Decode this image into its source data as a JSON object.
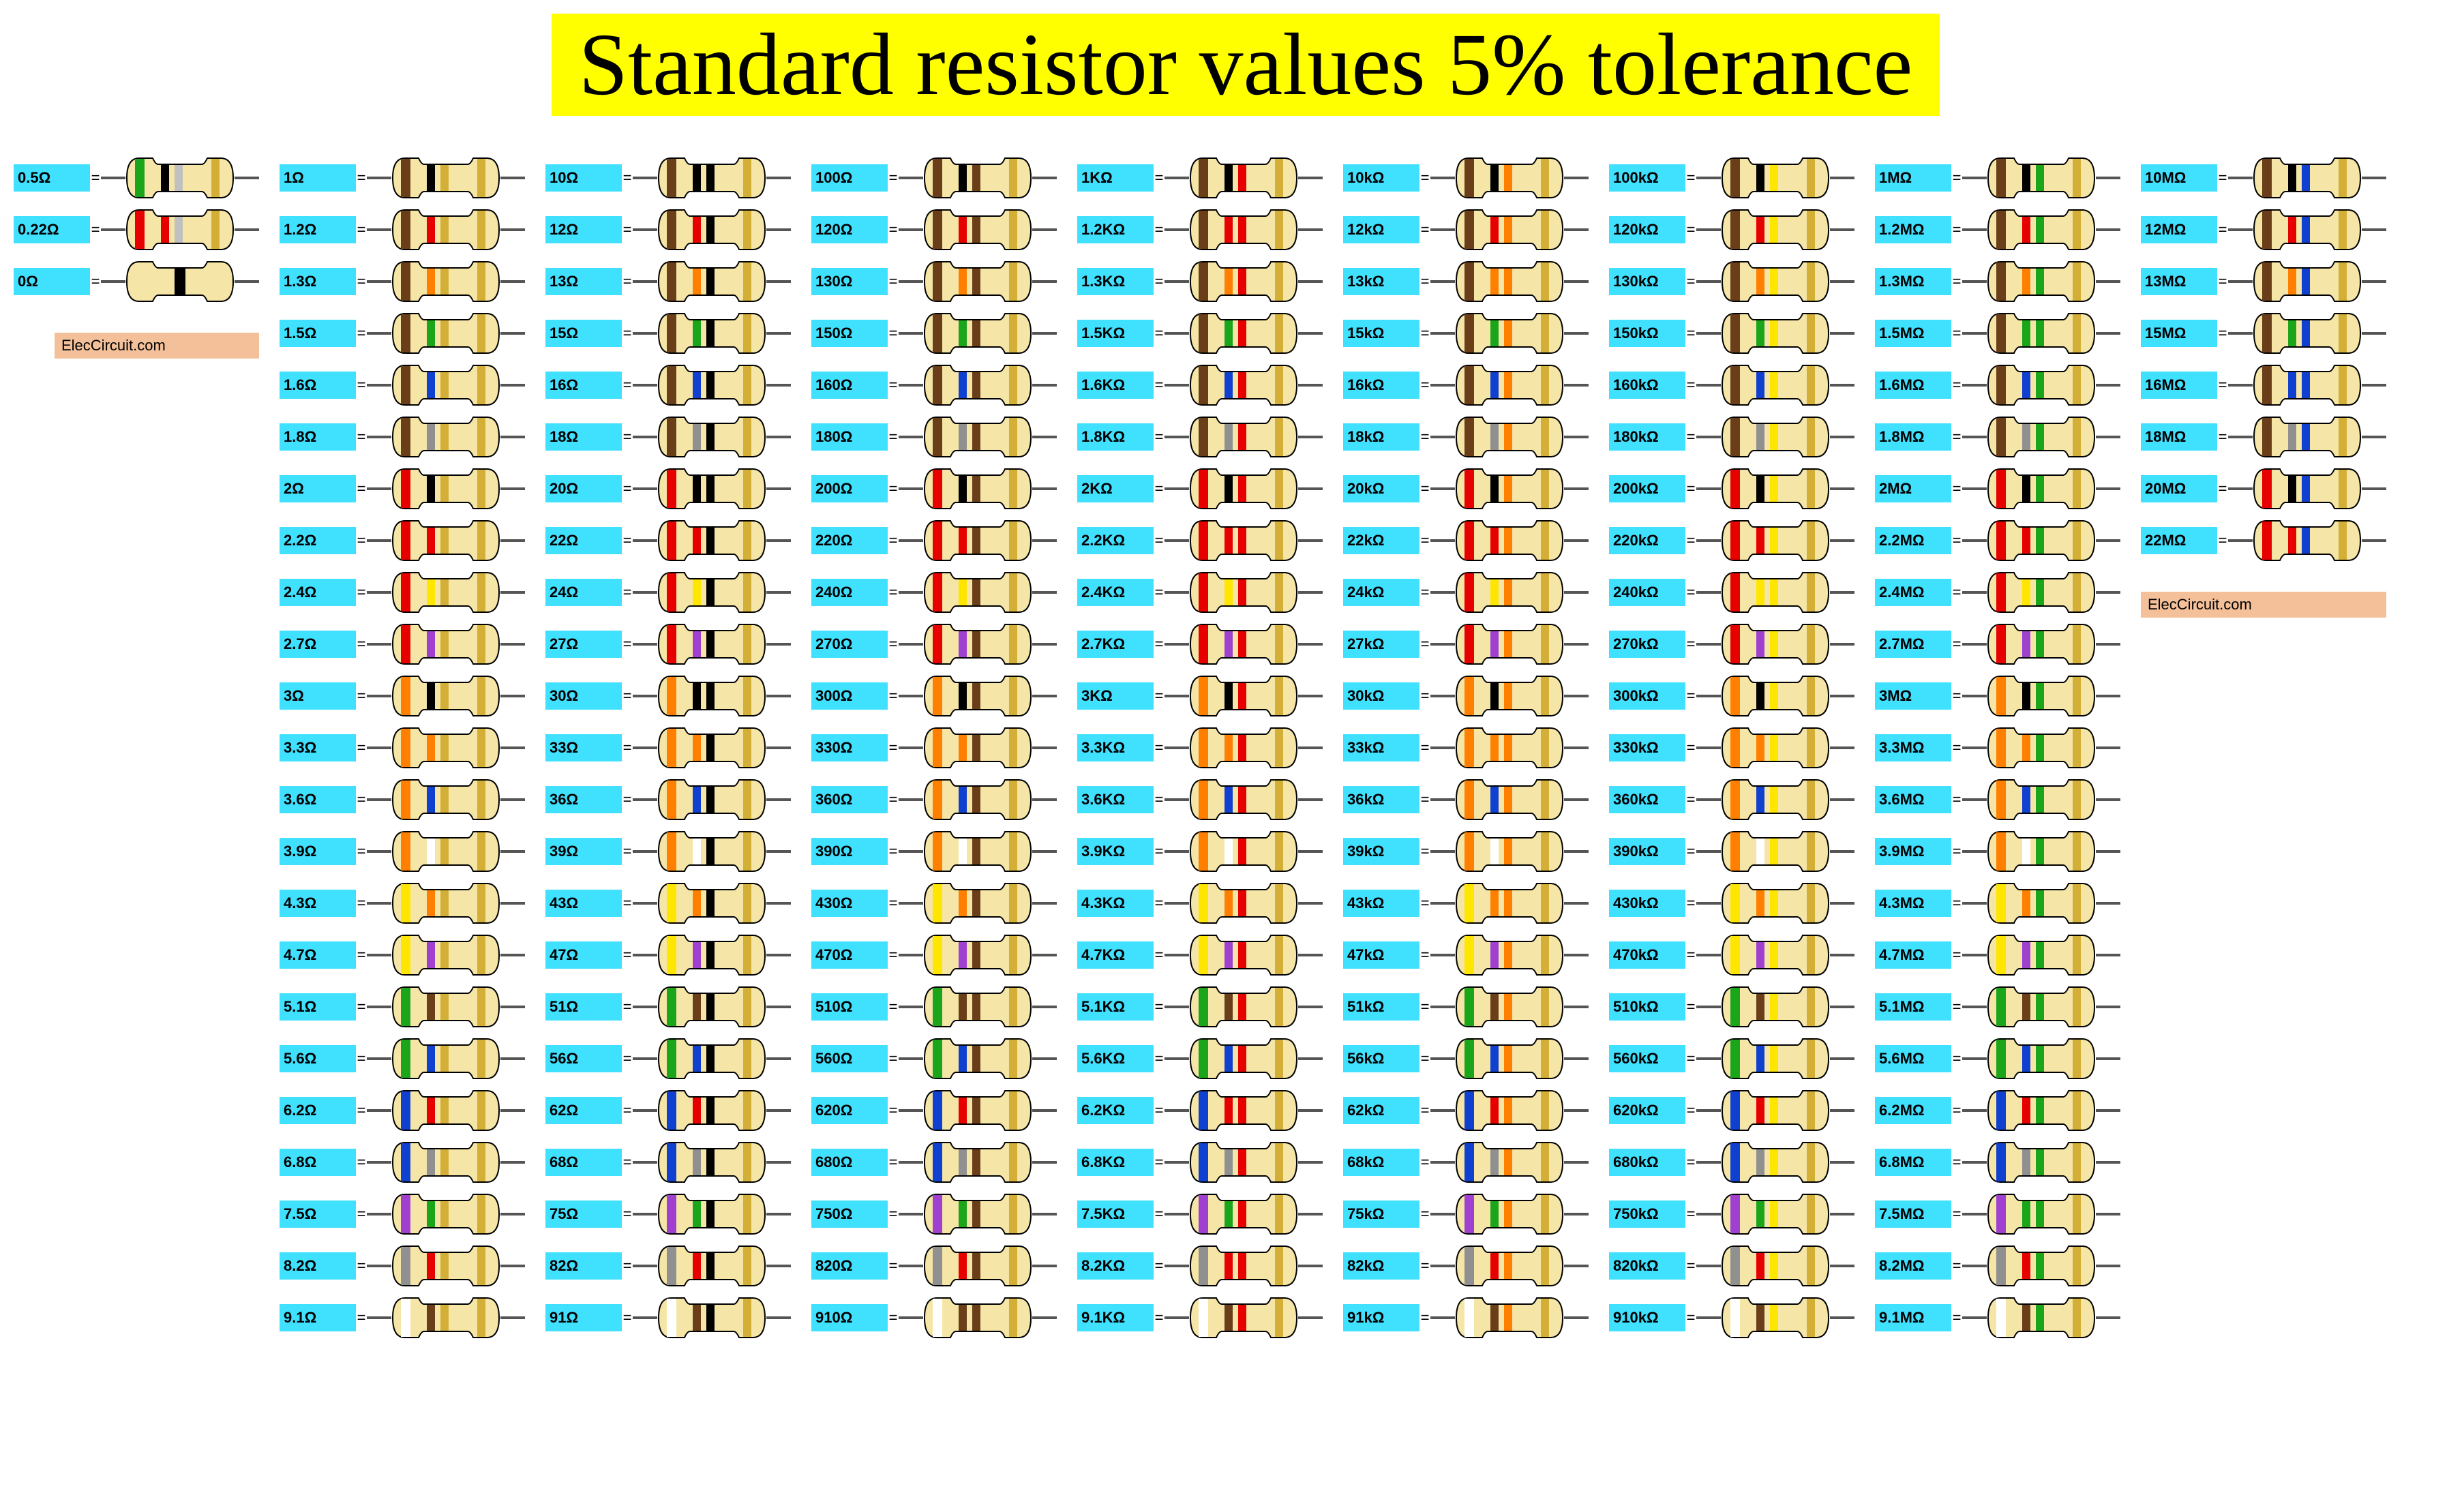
{
  "title": "Standard resistor values 5% tolerance",
  "title_bg": "#ffff00",
  "title_color": "#000000",
  "label_bg": "#40e0ff",
  "label_color": "#000000",
  "watermark_text": "ElecCircuit.com",
  "watermark_bg": "#f4c09a",
  "watermark_color": "#000000",
  "body_color": "#f5e6a8",
  "body_stroke": "#000000",
  "wire_color": "#555555",
  "digit_colors": {
    "0": "#000000",
    "1": "#6b3e1a",
    "2": "#e60000",
    "3": "#ff8000",
    "4": "#ffe600",
    "5": "#1aa51a",
    "6": "#1040d0",
    "7": "#a040d0",
    "8": "#909090",
    "9": "#ffffff"
  },
  "mult_colors": {
    "-2": "#c0c0c0",
    "-1": "#d4af37",
    "0": "#000000",
    "1": "#6b3e1a",
    "2": "#e60000",
    "3": "#ff8000",
    "4": "#ffe600",
    "5": "#1aa51a",
    "6": "#1040d0",
    "7": "#a040d0"
  },
  "tol_color": "#d4af37",
  "columns": [
    {
      "special": true,
      "items": [
        {
          "label": "0.5Ω",
          "d1": 5,
          "d2": 0,
          "m": -2
        },
        {
          "label": "0.22Ω",
          "d1": 2,
          "d2": 2,
          "m": -2
        },
        {
          "label": "0Ω",
          "single_black": true
        }
      ],
      "watermark_after": true
    },
    {
      "mult": 0,
      "unit": "Ω",
      "base_labels": [
        [
          "1",
          "10"
        ],
        [
          "1.2",
          "12"
        ],
        [
          "1.3",
          "13"
        ],
        [
          "1.5",
          "15"
        ],
        [
          "1.6",
          "16"
        ],
        [
          "1.8",
          "18"
        ],
        [
          "2",
          "20"
        ],
        [
          "2.2",
          "22"
        ],
        [
          "2.4",
          "24"
        ],
        [
          "2.7",
          "27"
        ],
        [
          "3",
          "30"
        ],
        [
          "3.3",
          "33"
        ],
        [
          "3.6",
          "36"
        ],
        [
          "3.9",
          "39"
        ],
        [
          "4.3",
          "43"
        ],
        [
          "4.7",
          "47"
        ],
        [
          "5.1",
          "51"
        ],
        [
          "5.6",
          "56"
        ],
        [
          "6.2",
          "62"
        ],
        [
          "6.8",
          "68"
        ],
        [
          "7.5",
          "75"
        ],
        [
          "8.2",
          "82"
        ],
        [
          "9.1",
          "91"
        ]
      ],
      "mult_offset": -1
    },
    {
      "mult": 0,
      "unit": "Ω",
      "labels": [
        "10",
        "12",
        "13",
        "15",
        "16",
        "18",
        "20",
        "22",
        "24",
        "27",
        "30",
        "33",
        "36",
        "39",
        "43",
        "47",
        "51",
        "56",
        "62",
        "68",
        "75",
        "82",
        "91"
      ]
    },
    {
      "mult": 1,
      "unit": "Ω",
      "labels": [
        "100",
        "120",
        "130",
        "150",
        "160",
        "180",
        "200",
        "220",
        "240",
        "270",
        "300",
        "330",
        "360",
        "390",
        "430",
        "470",
        "510",
        "560",
        "620",
        "680",
        "750",
        "820",
        "910"
      ]
    },
    {
      "mult": 2,
      "unit": "KΩ",
      "labels": [
        "1",
        "1.2",
        "1.3",
        "1.5",
        "1.6",
        "1.8",
        "2",
        "2.2",
        "2.4",
        "2.7",
        "3",
        "3.3",
        "3.6",
        "3.9",
        "4.3",
        "4.7",
        "5.1",
        "5.6",
        "6.2",
        "6.8",
        "7.5",
        "8.2",
        "9.1"
      ]
    },
    {
      "mult": 3,
      "unit": "kΩ",
      "labels": [
        "10",
        "12",
        "13",
        "15",
        "16",
        "18",
        "20",
        "22",
        "24",
        "27",
        "30",
        "33",
        "36",
        "39",
        "43",
        "47",
        "51",
        "56",
        "62",
        "68",
        "75",
        "82",
        "91"
      ]
    },
    {
      "mult": 4,
      "unit": "kΩ",
      "labels": [
        "100",
        "120",
        "130",
        "150",
        "160",
        "180",
        "200",
        "220",
        "240",
        "270",
        "300",
        "330",
        "360",
        "390",
        "430",
        "470",
        "510",
        "560",
        "620",
        "680",
        "750",
        "820",
        "910"
      ]
    },
    {
      "mult": 5,
      "unit": "MΩ",
      "labels": [
        "1",
        "1.2",
        "1.3",
        "1.5",
        "1.6",
        "1.8",
        "2",
        "2.2",
        "2.4",
        "2.7",
        "3",
        "3.3",
        "3.6",
        "3.9",
        "4.3",
        "4.7",
        "5.1",
        "5.6",
        "6.2",
        "6.8",
        "7.5",
        "8.2",
        "9.1"
      ]
    },
    {
      "mult": 6,
      "unit": "MΩ",
      "labels": [
        "10",
        "12",
        "13",
        "15",
        "16",
        "18",
        "20",
        "22"
      ],
      "watermark_after": true
    }
  ],
  "e24_digits": [
    [
      1,
      0
    ],
    [
      1,
      2
    ],
    [
      1,
      3
    ],
    [
      1,
      5
    ],
    [
      1,
      6
    ],
    [
      1,
      8
    ],
    [
      2,
      0
    ],
    [
      2,
      2
    ],
    [
      2,
      4
    ],
    [
      2,
      7
    ],
    [
      3,
      0
    ],
    [
      3,
      3
    ],
    [
      3,
      6
    ],
    [
      3,
      9
    ],
    [
      4,
      3
    ],
    [
      4,
      7
    ],
    [
      5,
      1
    ],
    [
      5,
      6
    ],
    [
      6,
      2
    ],
    [
      6,
      8
    ],
    [
      7,
      5
    ],
    [
      8,
      2
    ],
    [
      9,
      1
    ]
  ]
}
